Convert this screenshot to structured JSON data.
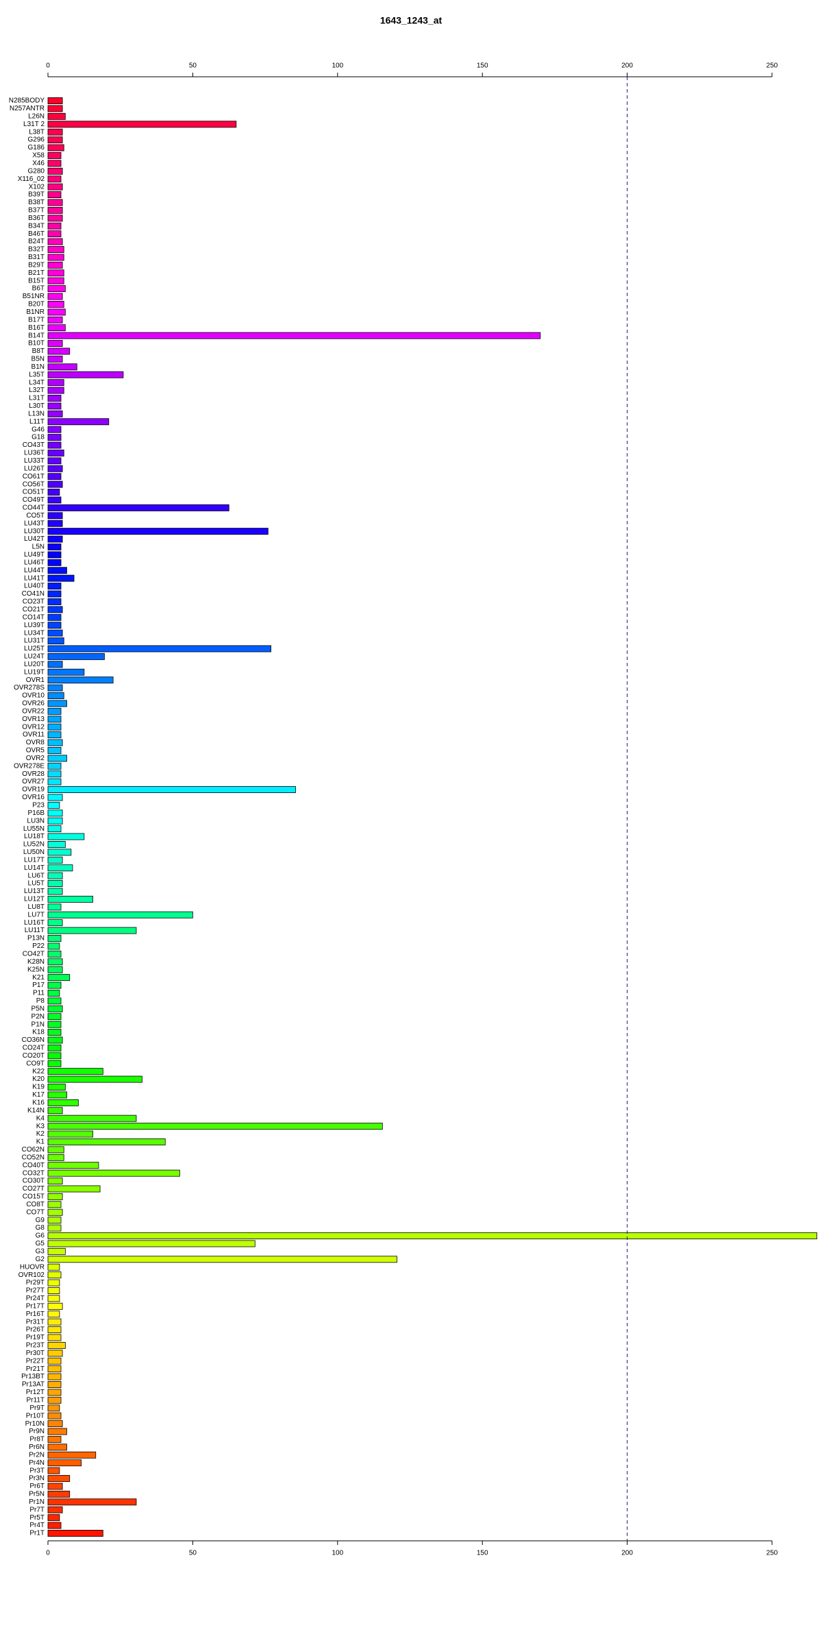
{
  "chart_data": {
    "type": "bar",
    "orientation": "horizontal",
    "title": "1643_1243_at",
    "categories": [
      "N285BODY",
      "N257ANTR",
      "L26N",
      "L31T 2",
      "L38T",
      "G296",
      "G186",
      "X58",
      "X46",
      "G280",
      "X116_02",
      "X102",
      "B39T",
      "B38T",
      "B37T",
      "B36T",
      "B34T",
      "B46T",
      "B24T",
      "B32T",
      "B31T",
      "B29T",
      "B21T",
      "B15T",
      "B6T",
      "B51NR",
      "B20T",
      "B1NR",
      "B17T",
      "B16T",
      "B14T",
      "B10T",
      "B8T",
      "B5N",
      "B1N",
      "L35T",
      "L34T",
      "L32T",
      "L31T",
      "L30T",
      "L13N",
      "L11T",
      "G46",
      "G18",
      "CO43T",
      "LU36T",
      "LU33T",
      "LU26T",
      "CO61T",
      "CO56T",
      "CO51T",
      "CO49T",
      "CO44T",
      "CO5T",
      "LU43T",
      "LU30T",
      "LU42T",
      "L5N",
      "LU49T",
      "LU46T",
      "LU44T",
      "LU41T",
      "LU40T",
      "CO41N",
      "CO23T",
      "CO21T",
      "CO14T",
      "LU39T",
      "LU34T",
      "LU31T",
      "LU25T",
      "LU24T",
      "LU20T",
      "LU19T",
      "OVR1",
      "OVR278S",
      "OVR10",
      "OVR26",
      "OVR22",
      "OVR13",
      "OVR12",
      "OVR11",
      "OVR8",
      "OVR5",
      "OVR2",
      "OVR278E",
      "OVR28",
      "OVR27",
      "OVR19",
      "OVR16",
      "P23",
      "P16B",
      "LU3N",
      "LU55N",
      "LU18T",
      "LU52N",
      "LU50N",
      "LU17T",
      "LU14T",
      "LU6T",
      "LU5T",
      "LU13T",
      "LU12T",
      "LU8T",
      "LU7T",
      "LU16T",
      "LU11T",
      "P13N",
      "P22",
      "CO42T",
      "K28N",
      "K25N",
      "K21",
      "P17",
      "P11",
      "P8",
      "P5N",
      "P2N",
      "P1N",
      "K18",
      "CO36N",
      "CO24T",
      "CO20T",
      "CO9T",
      "K22",
      "K20",
      "K19",
      "K17",
      "K16",
      "K14N",
      "K4",
      "K3",
      "K2",
      "K1",
      "CO62N",
      "CO52N",
      "CO40T",
      "CO32T",
      "CO30T",
      "CO27T",
      "CO15T",
      "CO8T",
      "CO7T",
      "G9",
      "G8",
      "G6",
      "G5",
      "G3",
      "G2",
      "HUOVR",
      "OVR102",
      "Pr29T",
      "Pr27T",
      "Pr24T",
      "Pr17T",
      "Pr16T",
      "Pr31T",
      "Pr26T",
      "Pr19T",
      "Pr23T",
      "Pr30T",
      "Pr22T",
      "Pr21T",
      "Pr13BT",
      "Pr13AT",
      "Pr12T",
      "Pr11T",
      "Pr9T",
      "Pr10T",
      "Pr10N",
      "Pr9N",
      "Pr8T",
      "Pr6N",
      "Pr2N",
      "Pr4N",
      "Pr3T",
      "Pr3N",
      "Pr6T",
      "Pr5N",
      "Pr1N",
      "Pr7T",
      "Pr5T",
      "Pr4T",
      "Pr1T"
    ],
    "values": [
      5,
      5,
      6,
      65,
      5,
      5,
      5.5,
      4.5,
      4.5,
      5,
      4.5,
      5,
      4.5,
      5,
      5,
      5,
      4.5,
      4.5,
      5,
      5.5,
      5.5,
      5,
      5.5,
      5.5,
      6,
      5,
      5.5,
      6,
      5,
      6,
      170,
      5,
      7.5,
      5,
      10,
      26,
      5.5,
      5.5,
      4.5,
      4.5,
      5,
      21,
      4.5,
      4.5,
      4.5,
      5.5,
      4.5,
      5,
      4.5,
      5,
      4,
      4.5,
      62.5,
      5,
      5,
      76,
      5,
      4.5,
      4.5,
      4.5,
      6.5,
      9,
      4.5,
      4.5,
      4.5,
      5,
      4.5,
      4.5,
      5,
      5.5,
      77,
      19.5,
      5,
      12.5,
      22.5,
      5,
      5.5,
      6.5,
      4.5,
      4.5,
      4.5,
      4.5,
      5,
      4.5,
      6.5,
      4.5,
      4.5,
      4.5,
      85.5,
      5,
      4,
      5,
      5,
      4.5,
      12.5,
      6,
      8,
      5,
      8.5,
      5,
      5,
      5,
      15.5,
      4.5,
      50,
      5,
      30.5,
      4.5,
      4,
      4.5,
      5,
      5,
      7.5,
      4.5,
      4,
      4.5,
      5,
      4.5,
      4.5,
      4.5,
      5,
      4.5,
      4.5,
      4.5,
      19,
      32.5,
      6,
      6.5,
      10.5,
      5,
      30.5,
      115.5,
      15.5,
      40.5,
      5.5,
      5.5,
      17.5,
      45.5,
      5,
      18,
      5,
      4.5,
      5,
      4.5,
      4.5,
      265.5,
      71.5,
      6,
      120.5,
      4,
      4.5,
      4,
      4,
      4,
      5,
      4,
      4.5,
      4.5,
      4.5,
      6,
      5,
      4.5,
      4.5,
      4.5,
      4.5,
      4.5,
      4.5,
      4,
      4.5,
      5,
      6.5,
      4.5,
      6.5,
      16.5,
      11.5,
      4,
      7.5,
      5,
      7.5,
      30.5,
      5,
      4,
      4.5,
      19
    ],
    "colors": [
      "hsl(350,100%,50%)",
      "hsl(348,100%,50%)",
      "hsl(346,100%,50%)",
      "hsl(344,100%,50%)",
      "hsl(342,100%,50%)",
      "hsl(341,100%,50%)",
      "hsl(339,100%,50%)",
      "hsl(337,100%,50%)",
      "hsl(335,100%,50%)",
      "hsl(333,100%,50%)",
      "hsl(331,100%,50%)",
      "hsl(329,100%,50%)",
      "hsl(327,100%,50%)",
      "hsl(325,100%,50%)",
      "hsl(324,100%,50%)",
      "hsl(322,100%,50%)",
      "hsl(320,100%,50%)",
      "hsl(318,100%,50%)",
      "hsl(316,100%,50%)",
      "hsl(314,100%,50%)",
      "hsl(312,100%,50%)",
      "hsl(310,100%,50%)",
      "hsl(309,100%,50%)",
      "hsl(307,100%,50%)",
      "hsl(305,100%,50%)",
      "hsl(303,100%,50%)",
      "hsl(301,100%,50%)",
      "hsl(299,100%,50%)",
      "hsl(297,100%,50%)",
      "hsl(295,100%,50%)",
      "hsl(293,100%,50%)",
      "hsl(292,100%,50%)",
      "hsl(290,100%,50%)",
      "hsl(288,100%,50%)",
      "hsl(286,100%,50%)",
      "hsl(284,100%,50%)",
      "hsl(282,100%,50%)",
      "hsl(280,100%,50%)",
      "hsl(278,100%,50%)",
      "hsl(276,100%,50%)",
      "hsl(275,100%,50%)",
      "hsl(273,100%,50%)",
      "hsl(271,100%,50%)",
      "hsl(269,100%,50%)",
      "hsl(267,100%,50%)",
      "hsl(265,100%,50%)",
      "hsl(263,100%,50%)",
      "hsl(261,100%,50%)",
      "hsl(260,100%,50%)",
      "hsl(258,100%,50%)",
      "hsl(256,100%,50%)",
      "hsl(254,100%,50%)",
      "hsl(252,100%,50%)",
      "hsl(250,100%,50%)",
      "hsl(248,100%,50%)",
      "hsl(246,100%,50%)",
      "hsl(244,100%,50%)",
      "hsl(243,100%,50%)",
      "hsl(241,100%,50%)",
      "hsl(239,100%,50%)",
      "hsl(237,100%,50%)",
      "hsl(235,100%,50%)",
      "hsl(233,100%,50%)",
      "hsl(231,100%,50%)",
      "hsl(229,100%,50%)",
      "hsl(227,100%,50%)",
      "hsl(226,100%,50%)",
      "hsl(224,100%,50%)",
      "hsl(222,100%,50%)",
      "hsl(220,100%,50%)",
      "hsl(218,100%,50%)",
      "hsl(216,100%,50%)",
      "hsl(214,100%,50%)",
      "hsl(212,100%,50%)",
      "hsl(210,100%,50%)",
      "hsl(209,100%,50%)",
      "hsl(207,100%,50%)",
      "hsl(205,100%,50%)",
      "hsl(203,100%,50%)",
      "hsl(201,100%,50%)",
      "hsl(199,100%,50%)",
      "hsl(197,100%,50%)",
      "hsl(195,100%,50%)",
      "hsl(194,100%,50%)",
      "hsl(192,100%,50%)",
      "hsl(190,100%,50%)",
      "hsl(188,100%,50%)",
      "hsl(186,100%,50%)",
      "hsl(184,100%,50%)",
      "hsl(182,100%,50%)",
      "hsl(180,100%,50%)",
      "hsl(178,100%,50%)",
      "hsl(177,100%,50%)",
      "hsl(175,100%,50%)",
      "hsl(173,100%,50%)",
      "hsl(171,100%,50%)",
      "hsl(169,100%,50%)",
      "hsl(167,100%,50%)",
      "hsl(165,100%,50%)",
      "hsl(163,100%,50%)",
      "hsl(161,100%,50%)",
      "hsl(160,100%,50%)",
      "hsl(158,100%,50%)",
      "hsl(156,100%,50%)",
      "hsl(154,100%,50%)",
      "hsl(152,100%,50%)",
      "hsl(150,100%,50%)",
      "hsl(148,100%,50%)",
      "hsl(146,100%,50%)",
      "hsl(145,100%,50%)",
      "hsl(143,100%,50%)",
      "hsl(141,100%,50%)",
      "hsl(139,100%,50%)",
      "hsl(137,100%,50%)",
      "hsl(135,100%,50%)",
      "hsl(133,100%,50%)",
      "hsl(131,100%,50%)",
      "hsl(129,100%,50%)",
      "hsl(128,100%,50%)",
      "hsl(126,100%,50%)",
      "hsl(124,100%,50%)",
      "hsl(122,100%,50%)",
      "hsl(120,100%,50%)",
      "hsl(118,100%,50%)",
      "hsl(116,100%,50%)",
      "hsl(114,100%,50%)",
      "hsl(112,100%,50%)",
      "hsl(111,100%,50%)",
      "hsl(109,100%,50%)",
      "hsl(107,100%,50%)",
      "hsl(105,100%,50%)",
      "hsl(103,100%,50%)",
      "hsl(101,100%,50%)",
      "hsl(99,100%,50%)",
      "hsl(97,100%,50%)",
      "hsl(96,100%,50%)",
      "hsl(94,100%,50%)",
      "hsl(92,100%,50%)",
      "hsl(90,100%,50%)",
      "hsl(88,100%,50%)",
      "hsl(86,100%,50%)",
      "hsl(84,100%,50%)",
      "hsl(82,100%,50%)",
      "hsl(80,100%,50%)",
      "hsl(79,100%,50%)",
      "hsl(77,100%,50%)",
      "hsl(75,100%,50%)",
      "hsl(73,100%,50%)",
      "hsl(71,100%,50%)",
      "hsl(69,100%,50%)",
      "hsl(67,100%,50%)",
      "hsl(65,100%,50%)",
      "hsl(63,100%,50%)",
      "hsl(62,100%,50%)",
      "hsl(60,100%,50%)",
      "hsl(58,100%,50%)",
      "hsl(56,100%,50%)",
      "hsl(54,100%,50%)",
      "hsl(52,100%,50%)",
      "hsl(50,100%,50%)",
      "hsl(48,100%,50%)",
      "hsl(46,100%,50%)",
      "hsl(45,100%,50%)",
      "hsl(43,100%,50%)",
      "hsl(41,100%,50%)",
      "hsl(39,100%,50%)",
      "hsl(37,100%,50%)",
      "hsl(35,100%,50%)",
      "hsl(33,100%,50%)",
      "hsl(31,100%,50%)",
      "hsl(29,100%,50%)",
      "hsl(28,100%,50%)",
      "hsl(26,100%,50%)",
      "hsl(24,100%,50%)",
      "hsl(22,100%,50%)",
      "hsl(20,100%,50%)",
      "hsl(18,100%,50%)",
      "hsl(16,100%,50%)",
      "hsl(14,100%,50%)",
      "hsl(12,100%,50%)",
      "hsl(11,100%,50%)",
      "hsl(9,100%,50%)",
      "hsl(7,100%,50%)",
      "hsl(5,100%,50%)"
    ],
    "xlim": [
      0,
      250
    ],
    "xticks": [
      0,
      50,
      100,
      150,
      200,
      250
    ],
    "reference_line": 200,
    "reference_line_color": "#1a1a80"
  }
}
